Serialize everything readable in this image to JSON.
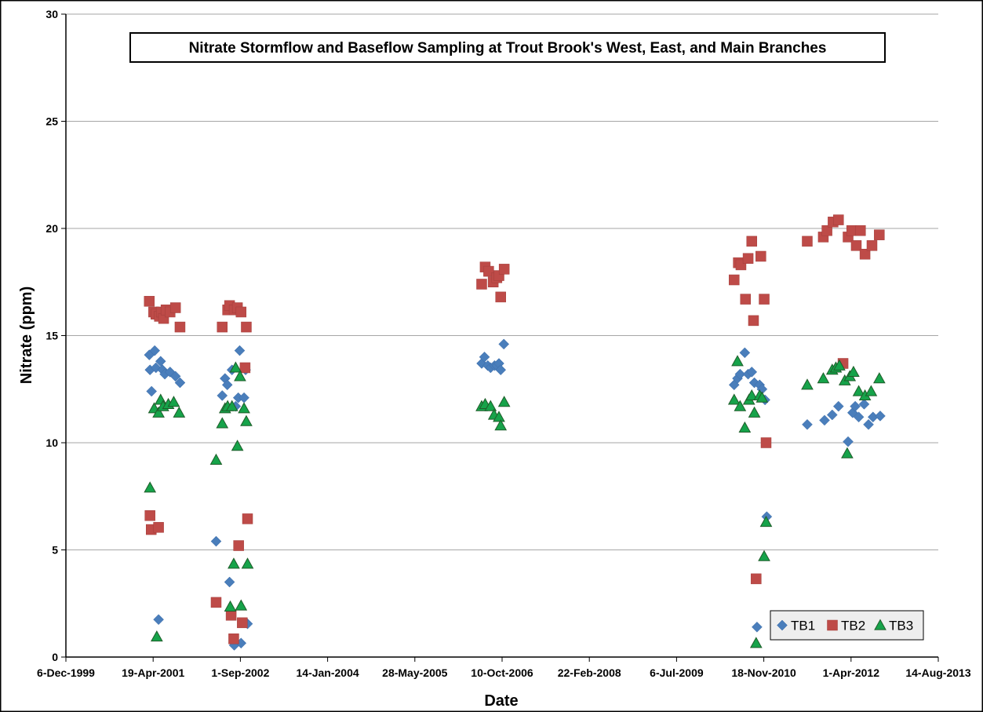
{
  "chart_data": {
    "type": "scatter",
    "title": "Nitrate Stormflow and Baseflow Sampling at Trout Brook's West, East, and Main Branches",
    "xlabel": "Date",
    "ylabel": "Nitrate (ppm)",
    "ylim": [
      0,
      30
    ],
    "xlim": [
      "1999-12-06",
      "2013-08-14"
    ],
    "x_tick_labels": [
      "6-Dec-1999",
      "19-Apr-2001",
      "1-Sep-2002",
      "14-Jan-2004",
      "28-May-2005",
      "10-Oct-2006",
      "22-Feb-2008",
      "6-Jul-2009",
      "18-Nov-2010",
      "1-Apr-2012",
      "14-Aug-2013"
    ],
    "y_ticks": [
      0,
      5,
      10,
      15,
      20,
      25,
      30
    ],
    "grid": "horizontal",
    "legend_position": "bottom-right",
    "series": [
      {
        "name": "TB1",
        "color": "#4a7ebb",
        "marker": "diamond",
        "points": [
          [
            "2001-03-28",
            14.1
          ],
          [
            "2001-04-01",
            13.4
          ],
          [
            "2001-04-10",
            12.4
          ],
          [
            "2001-04-28",
            14.3
          ],
          [
            "2001-05-05",
            13.5
          ],
          [
            "2001-05-20",
            1.75
          ],
          [
            "2001-06-01",
            13.8
          ],
          [
            "2001-06-12",
            13.4
          ],
          [
            "2001-06-25",
            13.2
          ],
          [
            "2001-07-25",
            13.3
          ],
          [
            "2001-08-25",
            13.1
          ],
          [
            "2001-09-20",
            12.8
          ],
          [
            "2002-04-15",
            5.4
          ],
          [
            "2002-05-20",
            12.2
          ],
          [
            "2002-06-05",
            13.0
          ],
          [
            "2002-06-18",
            12.7
          ],
          [
            "2002-07-01",
            3.5
          ],
          [
            "2002-07-15",
            13.4
          ],
          [
            "2002-07-28",
            0.55
          ],
          [
            "2002-08-05",
            11.7
          ],
          [
            "2002-08-20",
            12.1
          ],
          [
            "2002-08-28",
            14.3
          ],
          [
            "2002-09-05",
            0.65
          ],
          [
            "2002-09-22",
            12.1
          ],
          [
            "2002-10-01",
            13.4
          ],
          [
            "2002-10-12",
            1.55
          ],
          [
            "2006-06-15",
            13.7
          ],
          [
            "2006-07-01",
            14.0
          ],
          [
            "2006-07-20",
            13.6
          ],
          [
            "2006-08-05",
            13.5
          ],
          [
            "2006-08-28",
            13.6
          ],
          [
            "2006-09-10",
            13.6
          ],
          [
            "2006-09-22",
            13.7
          ],
          [
            "2006-10-02",
            13.4
          ],
          [
            "2006-10-20",
            14.6
          ],
          [
            "2010-06-01",
            12.7
          ],
          [
            "2010-06-20",
            13.0
          ],
          [
            "2010-07-05",
            13.2
          ],
          [
            "2010-08-01",
            14.2
          ],
          [
            "2010-08-20",
            13.2
          ],
          [
            "2010-09-10",
            13.3
          ],
          [
            "2010-09-25",
            12.8
          ],
          [
            "2010-10-10",
            1.4
          ],
          [
            "2010-10-25",
            12.7
          ],
          [
            "2010-11-08",
            12.5
          ],
          [
            "2010-11-25",
            12.0
          ],
          [
            "2010-12-05",
            6.55
          ],
          [
            "2011-07-25",
            10.85
          ],
          [
            "2011-11-01",
            11.05
          ],
          [
            "2011-12-15",
            11.3
          ],
          [
            "2012-01-20",
            11.7
          ],
          [
            "2012-03-15",
            10.05
          ],
          [
            "2012-04-10",
            11.4
          ],
          [
            "2012-04-25",
            11.7
          ],
          [
            "2012-05-15",
            11.2
          ],
          [
            "2012-06-15",
            11.8
          ],
          [
            "2012-07-10",
            10.85
          ],
          [
            "2012-08-05",
            11.2
          ],
          [
            "2012-09-15",
            11.25
          ]
        ]
      },
      {
        "name": "TB2",
        "color": "#be4b48",
        "marker": "square",
        "points": [
          [
            "2001-03-28",
            16.6
          ],
          [
            "2001-04-01",
            6.6
          ],
          [
            "2001-04-08",
            5.95
          ],
          [
            "2001-04-22",
            16.1
          ],
          [
            "2001-05-05",
            16.0
          ],
          [
            "2001-05-20",
            6.05
          ],
          [
            "2001-05-25",
            15.9
          ],
          [
            "2001-06-05",
            16.1
          ],
          [
            "2001-06-18",
            15.8
          ],
          [
            "2001-07-02",
            16.2
          ],
          [
            "2001-07-25",
            16.1
          ],
          [
            "2001-08-25",
            16.3
          ],
          [
            "2001-09-20",
            15.4
          ],
          [
            "2002-04-15",
            2.55
          ],
          [
            "2002-05-20",
            15.4
          ],
          [
            "2002-06-20",
            16.2
          ],
          [
            "2002-07-01",
            16.4
          ],
          [
            "2002-07-10",
            1.95
          ],
          [
            "2002-07-25",
            0.85
          ],
          [
            "2002-07-28",
            16.2
          ],
          [
            "2002-08-15",
            16.3
          ],
          [
            "2002-08-22",
            5.2
          ],
          [
            "2002-09-05",
            16.1
          ],
          [
            "2002-09-12",
            1.6
          ],
          [
            "2002-09-28",
            13.5
          ],
          [
            "2002-10-05",
            15.4
          ],
          [
            "2002-10-12",
            6.45
          ],
          [
            "2006-06-15",
            17.4
          ],
          [
            "2006-07-05",
            18.2
          ],
          [
            "2006-07-25",
            18.0
          ],
          [
            "2006-08-20",
            17.5
          ],
          [
            "2006-09-10",
            17.7
          ],
          [
            "2006-09-22",
            17.8
          ],
          [
            "2006-10-02",
            16.8
          ],
          [
            "2006-10-22",
            18.1
          ],
          [
            "2010-06-01",
            17.6
          ],
          [
            "2010-06-25",
            18.4
          ],
          [
            "2010-07-10",
            18.3
          ],
          [
            "2010-08-05",
            16.7
          ],
          [
            "2010-08-20",
            18.6
          ],
          [
            "2010-09-10",
            19.4
          ],
          [
            "2010-09-20",
            15.7
          ],
          [
            "2010-10-05",
            3.65
          ],
          [
            "2010-11-01",
            18.7
          ],
          [
            "2010-11-20",
            16.7
          ],
          [
            "2010-12-01",
            10.0
          ],
          [
            "2011-07-25",
            19.4
          ],
          [
            "2011-10-25",
            19.6
          ],
          [
            "2011-11-15",
            19.9
          ],
          [
            "2011-12-20",
            20.3
          ],
          [
            "2012-01-20",
            20.4
          ],
          [
            "2012-02-15",
            13.7
          ],
          [
            "2012-03-15",
            19.6
          ],
          [
            "2012-04-05",
            19.9
          ],
          [
            "2012-05-01",
            19.2
          ],
          [
            "2012-05-25",
            19.9
          ],
          [
            "2012-06-20",
            18.8
          ],
          [
            "2012-07-30",
            19.2
          ],
          [
            "2012-09-10",
            19.7
          ]
        ]
      },
      {
        "name": "TB3",
        "color": "#70ad47",
        "marker": "triangle",
        "points": [
          [
            "2001-04-01",
            7.9
          ],
          [
            "2001-04-25",
            11.6
          ],
          [
            "2001-05-10",
            0.95
          ],
          [
            "2001-05-20",
            11.4
          ],
          [
            "2001-06-01",
            12.0
          ],
          [
            "2001-06-15",
            11.7
          ],
          [
            "2001-07-15",
            11.8
          ],
          [
            "2001-08-15",
            11.9
          ],
          [
            "2001-09-15",
            11.4
          ],
          [
            "2002-04-15",
            9.2
          ],
          [
            "2002-05-20",
            10.9
          ],
          [
            "2002-06-05",
            11.6
          ],
          [
            "2002-06-20",
            11.7
          ],
          [
            "2002-07-05",
            2.35
          ],
          [
            "2002-07-15",
            11.7
          ],
          [
            "2002-07-25",
            4.35
          ],
          [
            "2002-08-05",
            13.5
          ],
          [
            "2002-08-15",
            9.85
          ],
          [
            "2002-08-30",
            13.1
          ],
          [
            "2002-09-05",
            2.4
          ],
          [
            "2002-09-22",
            11.6
          ],
          [
            "2002-10-05",
            11.0
          ],
          [
            "2002-10-12",
            4.35
          ],
          [
            "2006-06-15",
            11.7
          ],
          [
            "2006-07-05",
            11.8
          ],
          [
            "2006-08-05",
            11.7
          ],
          [
            "2006-08-25",
            11.3
          ],
          [
            "2006-09-22",
            11.2
          ],
          [
            "2006-10-02",
            10.8
          ],
          [
            "2006-10-22",
            11.9
          ],
          [
            "2010-06-01",
            12.0
          ],
          [
            "2010-06-20",
            13.8
          ],
          [
            "2010-07-05",
            11.7
          ],
          [
            "2010-08-01",
            10.7
          ],
          [
            "2010-08-25",
            12.0
          ],
          [
            "2010-09-10",
            12.2
          ],
          [
            "2010-09-25",
            11.4
          ],
          [
            "2010-10-05",
            0.65
          ],
          [
            "2010-10-25",
            12.2
          ],
          [
            "2010-11-08",
            12.1
          ],
          [
            "2010-11-20",
            4.7
          ],
          [
            "2010-12-01",
            6.3
          ],
          [
            "2011-07-25",
            12.7
          ],
          [
            "2011-10-25",
            13.0
          ],
          [
            "2011-12-15",
            13.4
          ],
          [
            "2012-01-05",
            13.5
          ],
          [
            "2012-01-25",
            13.6
          ],
          [
            "2012-02-25",
            12.9
          ],
          [
            "2012-03-10",
            9.5
          ],
          [
            "2012-03-25",
            13.1
          ],
          [
            "2012-04-15",
            13.3
          ],
          [
            "2012-05-15",
            12.4
          ],
          [
            "2012-06-20",
            12.2
          ],
          [
            "2012-07-25",
            12.4
          ],
          [
            "2012-09-10",
            13.0
          ]
        ]
      }
    ]
  }
}
